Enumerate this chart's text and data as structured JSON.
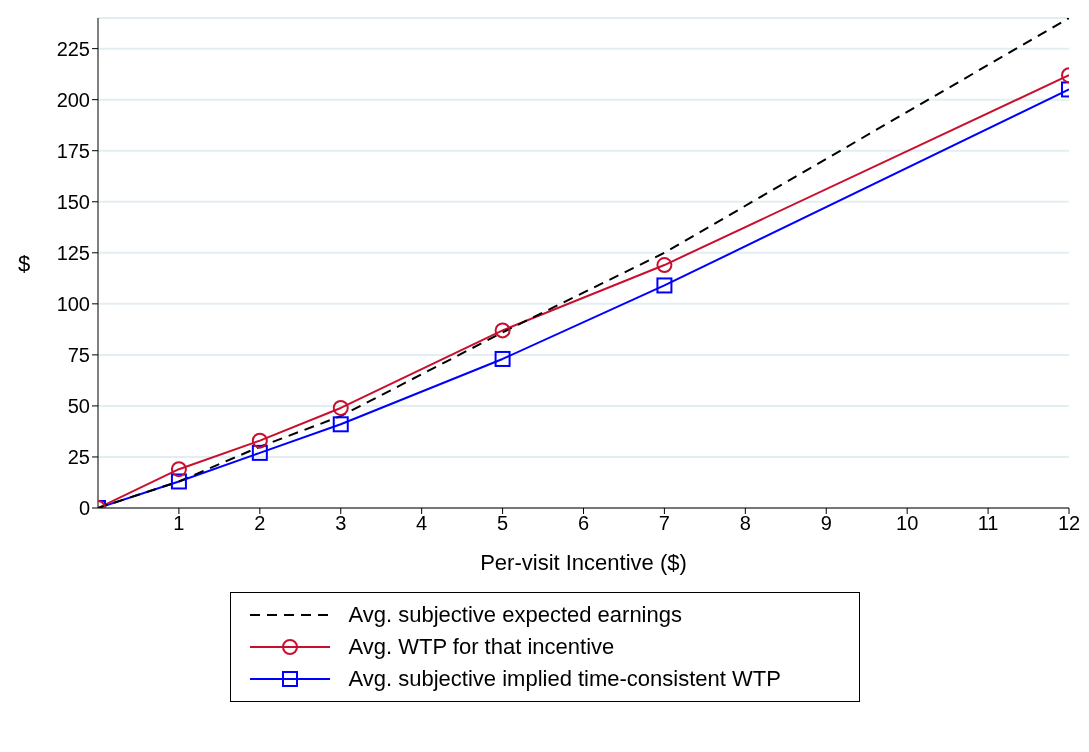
{
  "chart_data": {
    "type": "line",
    "xlabel": "Per-visit Incentive ($)",
    "ylabel": "$",
    "x": [
      0,
      1,
      2,
      3,
      5,
      7,
      12
    ],
    "series": [
      {
        "name": "Avg. subjective expected earnings",
        "color": "#000000",
        "line_style": "dashed",
        "marker": "none",
        "values": [
          0,
          13,
          30,
          45,
          86,
          125,
          240
        ]
      },
      {
        "name": "Avg. WTP for that incentive",
        "color": "#c8102e",
        "line_style": "solid",
        "marker": "circle",
        "values": [
          0,
          19,
          33,
          49,
          87,
          119,
          212
        ]
      },
      {
        "name": "Avg. subjective implied time-consistent WTP",
        "color": "#0000ff",
        "line_style": "solid",
        "marker": "square",
        "values": [
          0,
          13,
          27,
          41,
          73,
          109,
          205
        ]
      }
    ],
    "xlim": [
      0,
      12
    ],
    "xticks": [
      1,
      2,
      3,
      4,
      5,
      6,
      7,
      8,
      9,
      10,
      11,
      12
    ],
    "ylim": [
      0,
      240
    ],
    "yticks": [
      0,
      25,
      50,
      75,
      100,
      125,
      150,
      175,
      200,
      225
    ],
    "grid": "y",
    "legend": "bottom"
  }
}
